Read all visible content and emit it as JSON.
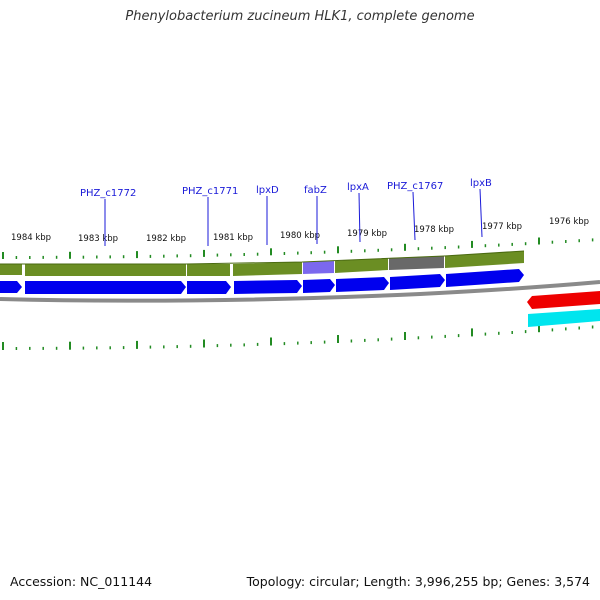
{
  "title": "Phenylobacterium zucineum HLK1, complete genome",
  "footer": {
    "accession": "Accession: NC_011144",
    "info": "Topology: circular; Length: 3,996,255 bp; Genes: 3,574"
  },
  "kbp_labels": [
    "1984 kbp",
    "1983 kbp",
    "1982 kbp",
    "1981 kbp",
    "1980 kbp",
    "1979 kbp",
    "1978 kbp",
    "1977 kbp",
    "1976 kbp"
  ],
  "gene_labels": [
    "PHZ_c1772",
    "PHZ_c1771",
    "lpxD",
    "fabZ",
    "lpxA",
    "PHZ_c1767",
    "lpxB"
  ],
  "colors": {
    "cds_band": "#6b8e23",
    "fabz_band": "#7b68ee",
    "c1767_band": "#696969",
    "gene_arrow": "#0000ee",
    "reverse_red": "#ee0000",
    "reverse_cyan": "#00e5ee",
    "backbone": "#888888",
    "tick": "#228b22"
  }
}
